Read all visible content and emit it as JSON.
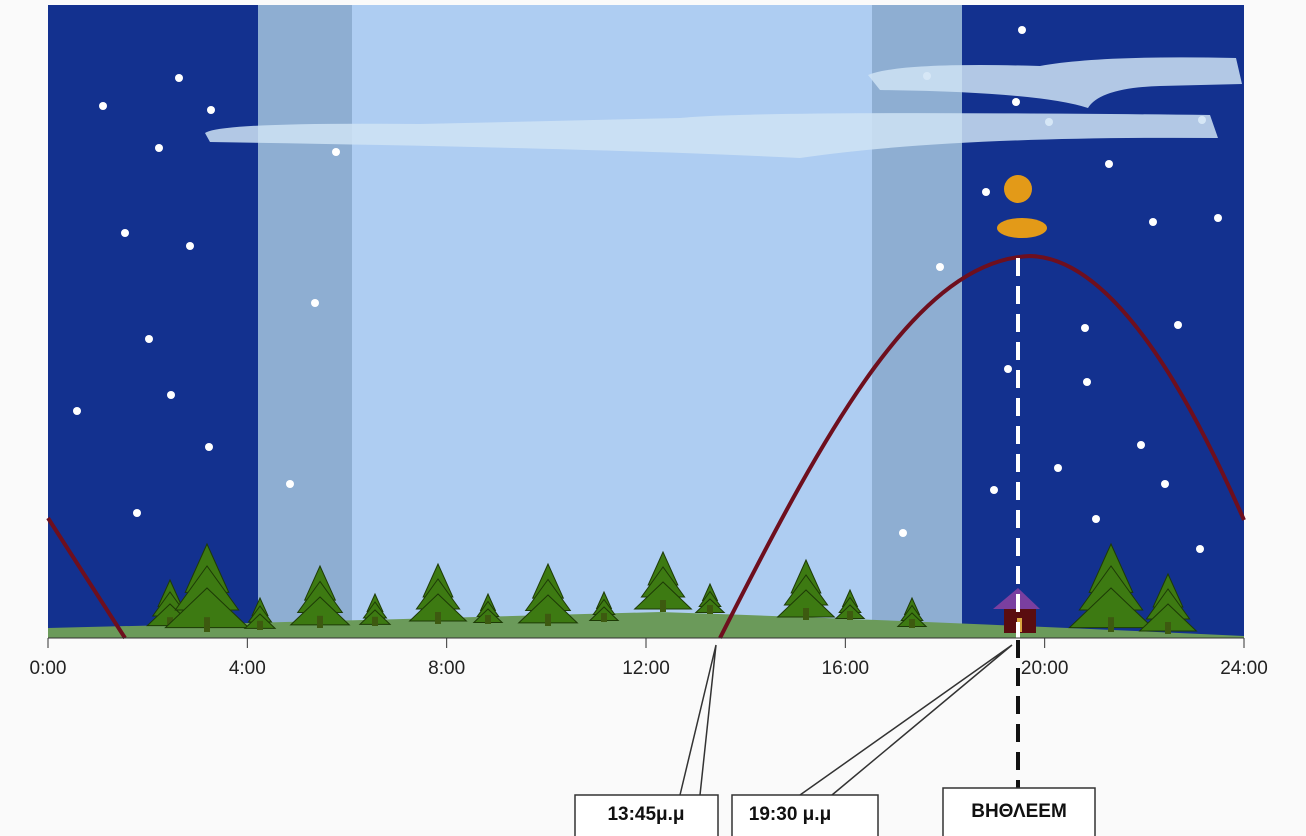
{
  "axis": {
    "ticks": [
      "0:00",
      "4:00",
      "8:00",
      "12:00",
      "16:00",
      "20:00",
      "24:00"
    ]
  },
  "callouts": [
    "13:45μ.μ",
    "19:30 μ.μ",
    "ΒΗΘΛΕΕΜ"
  ]
}
